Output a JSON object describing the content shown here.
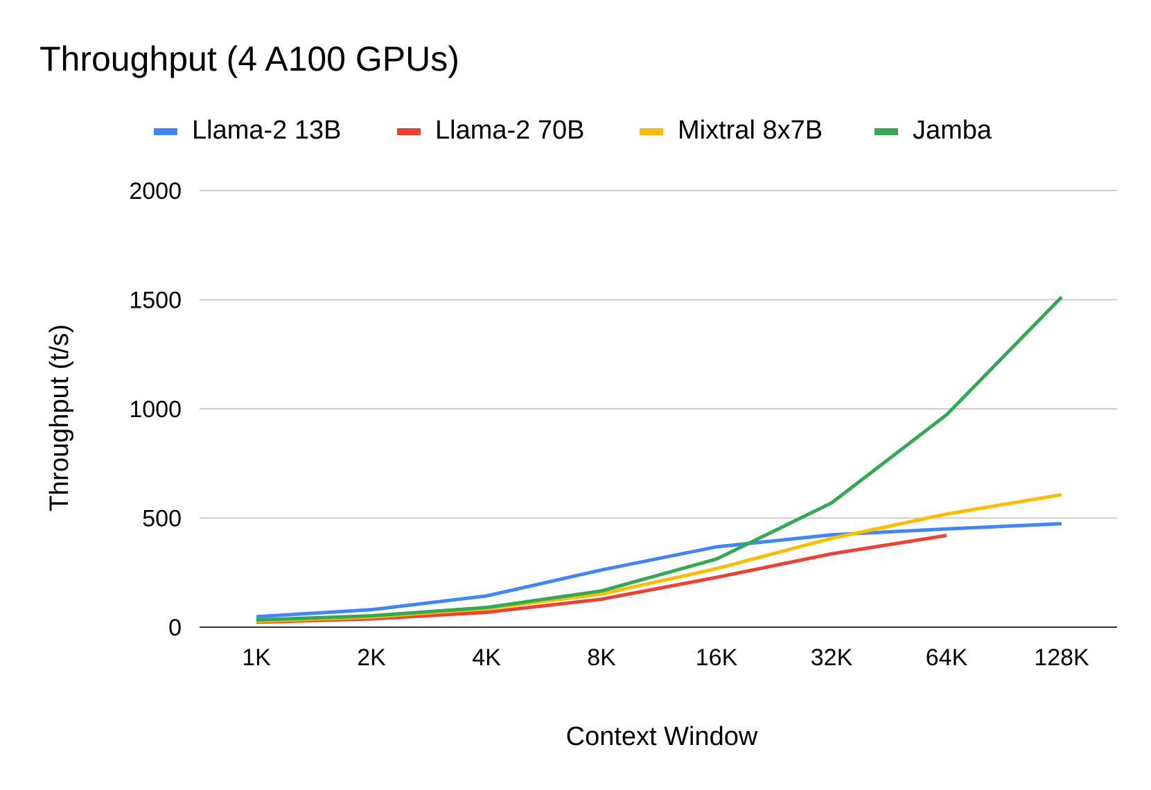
{
  "chart_data": {
    "type": "line",
    "title": "Throughput (4 A100 GPUs)",
    "xlabel": "Context Window",
    "ylabel": "Throughput (t/s)",
    "categories": [
      "1K",
      "2K",
      "4K",
      "8K",
      "16K",
      "32K",
      "64K",
      "128K"
    ],
    "ylim": [
      0,
      2000
    ],
    "yticks": [
      0,
      500,
      1000,
      1500,
      2000
    ],
    "ytick_labels": [
      "0",
      "500",
      "1000",
      "1500",
      "2000"
    ],
    "grid": true,
    "legend_position": "top",
    "series": [
      {
        "name": "Llama-2 13B",
        "color": "#4285F4",
        "values": [
          48,
          80,
          143,
          262,
          368,
          423,
          450,
          474
        ]
      },
      {
        "name": "Llama-2 70B",
        "color": "#EA4335",
        "values": [
          23,
          38,
          68,
          128,
          228,
          336,
          420,
          null
        ]
      },
      {
        "name": "Mixtral 8x7B",
        "color": "#FBBC04",
        "values": [
          27,
          46,
          85,
          152,
          268,
          407,
          518,
          607
        ]
      },
      {
        "name": "Jamba",
        "color": "#34A853",
        "values": [
          33,
          52,
          90,
          166,
          312,
          569,
          973,
          1512
        ]
      }
    ]
  }
}
